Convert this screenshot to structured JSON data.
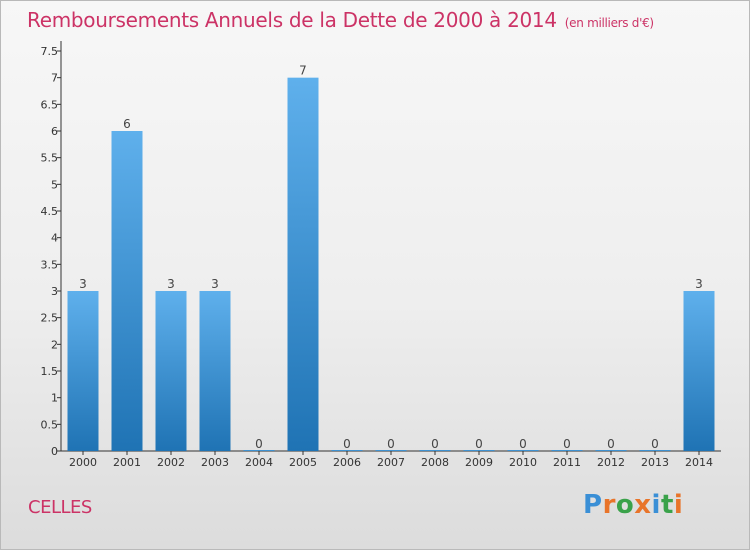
{
  "title": "Remboursements Annuels de la Dette de 2000 à 2014",
  "unit": "(en milliers d'€)",
  "commune": "CELLES",
  "logo": {
    "text": "Proxiti",
    "letter_colors": [
      "#3a8fd6",
      "#e8742a",
      "#3aa24a",
      "#e8742a",
      "#3a8fd6",
      "#3aa24a",
      "#e8742a"
    ]
  },
  "colors": {
    "title": "#cc3366",
    "bar_light": "#5fb0ec",
    "bar_dark": "#1f73b4",
    "axis": "#333333",
    "grid": "#9a9a9a"
  },
  "chart_data": {
    "type": "bar",
    "categories": [
      "2000",
      "2001",
      "2002",
      "2003",
      "2004",
      "2005",
      "2006",
      "2007",
      "2008",
      "2009",
      "2010",
      "2011",
      "2012",
      "2013",
      "2014"
    ],
    "values": [
      3,
      6,
      3,
      3,
      0,
      7,
      0,
      0,
      0,
      0,
      0,
      0,
      0,
      0,
      3
    ],
    "data_labels": [
      "3",
      "6",
      "3",
      "3",
      "0",
      "7",
      "0",
      "0",
      "0",
      "0",
      "0",
      "0",
      "0",
      "0",
      "3"
    ],
    "ylim": [
      0,
      7.5
    ],
    "y_ticks": [
      {
        "value": 0,
        "label": "0"
      },
      {
        "value": 0.5,
        "label": "0.5"
      },
      {
        "value": 1,
        "label": "1"
      },
      {
        "value": 1.5,
        "label": "1.5"
      },
      {
        "value": 2,
        "label": "2"
      },
      {
        "value": 2.5,
        "label": "2.5"
      },
      {
        "value": 3,
        "label": "3"
      },
      {
        "value": 3.5,
        "label": "3.5"
      },
      {
        "value": 4,
        "label": "4"
      },
      {
        "value": 4.5,
        "label": "4.5"
      },
      {
        "value": 5,
        "label": "5"
      },
      {
        "value": 5.5,
        "label": "5.5"
      },
      {
        "value": 6,
        "label": "6"
      },
      {
        "value": 6.5,
        "label": "6.5"
      },
      {
        "value": 7,
        "label": "7"
      },
      {
        "value": 7.5,
        "label": "7.5"
      }
    ],
    "xlabel": "",
    "ylabel": "",
    "grid": false
  }
}
